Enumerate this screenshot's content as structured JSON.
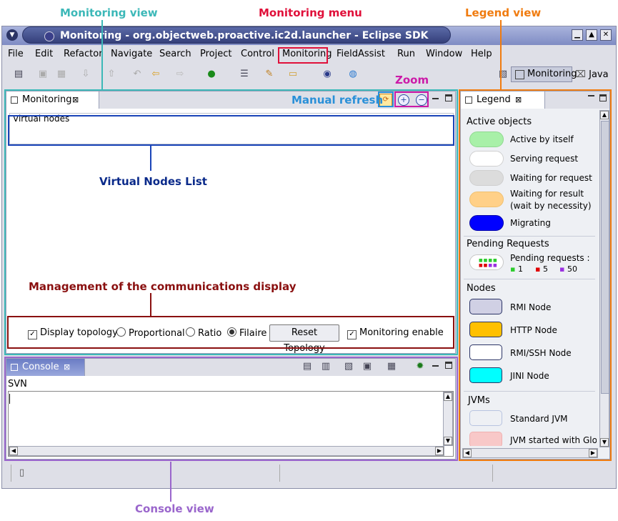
{
  "annotations": {
    "monitoring_view": "Monitoring view",
    "monitoring_menu": "Monitoring menu",
    "legend_view": "Legend view",
    "zoom": "Zoom",
    "manual_refresh": "Manual refresh",
    "virtual_nodes_list": "Virtual Nodes List",
    "management": "Management of the communications display",
    "console_view": "Console view",
    "colors": {
      "teal": "#3cb8b8",
      "red": "#e0103a",
      "orange": "#f07c10",
      "blue": "#1a44b8",
      "darkred": "#8a1010",
      "purple": "#9a66cc",
      "magenta": "#cc1aa8",
      "lightblue": "#2a90d8"
    }
  },
  "window": {
    "title": "Monitoring - org.objectweb.proactive.ic2d.launcher - Eclipse SDK",
    "controls": [
      "minimize-icon",
      "maximize-icon",
      "close-icon"
    ]
  },
  "menu": [
    "File",
    "Edit",
    "Refactor",
    "Navigate",
    "Search",
    "Project",
    "Control",
    "Monitoring",
    "FieldAssist",
    "Run",
    "Window",
    "Help"
  ],
  "perspectives": {
    "monitoring": "Monitoring",
    "java": "Java"
  },
  "monitoring_view": {
    "tab_label": "Monitoring",
    "virtual_nodes_label": "Virtual nodes",
    "options": {
      "display_topology": "Display topology",
      "proportional": "Proportional",
      "ratio": "Ratio",
      "filaire": "Filaire",
      "reset_topology": "Reset Topology",
      "monitoring_enable": "Monitoring enable"
    }
  },
  "console_view": {
    "tab_label": "Console",
    "svn_label": "SVN"
  },
  "legend_view": {
    "tab_label": "Legend",
    "active_objects": {
      "title": "Active objects",
      "items": [
        {
          "label": "Active by itself",
          "color": "#a8f0a8"
        },
        {
          "label": "Serving request",
          "color": "#ffffff"
        },
        {
          "label": "Waiting for request",
          "color": "#dcdcdc"
        },
        {
          "label": "Waiting for result",
          "label2": "(wait by necessity)",
          "color": "#ffd088"
        },
        {
          "label": "Migrating",
          "color": "#0000ff"
        }
      ]
    },
    "pending": {
      "title": "Pending Requests",
      "label": "Pending requests :",
      "counts": [
        "1",
        "5",
        "50"
      ]
    },
    "nodes": {
      "title": "Nodes",
      "items": [
        {
          "label": "RMI Node",
          "color": "#d0d0e4"
        },
        {
          "label": "HTTP Node",
          "color": "#ffc000"
        },
        {
          "label": "RMI/SSH Node",
          "color": "#ffffff"
        },
        {
          "label": "JINI Node",
          "color": "#00ffff"
        }
      ]
    },
    "jvms": {
      "title": "JVMs",
      "items": [
        {
          "label": "Standard JVM",
          "color": "#eef0f4"
        },
        {
          "label": "JVM started with Glo",
          "color": "#f8c8c8"
        }
      ]
    }
  }
}
